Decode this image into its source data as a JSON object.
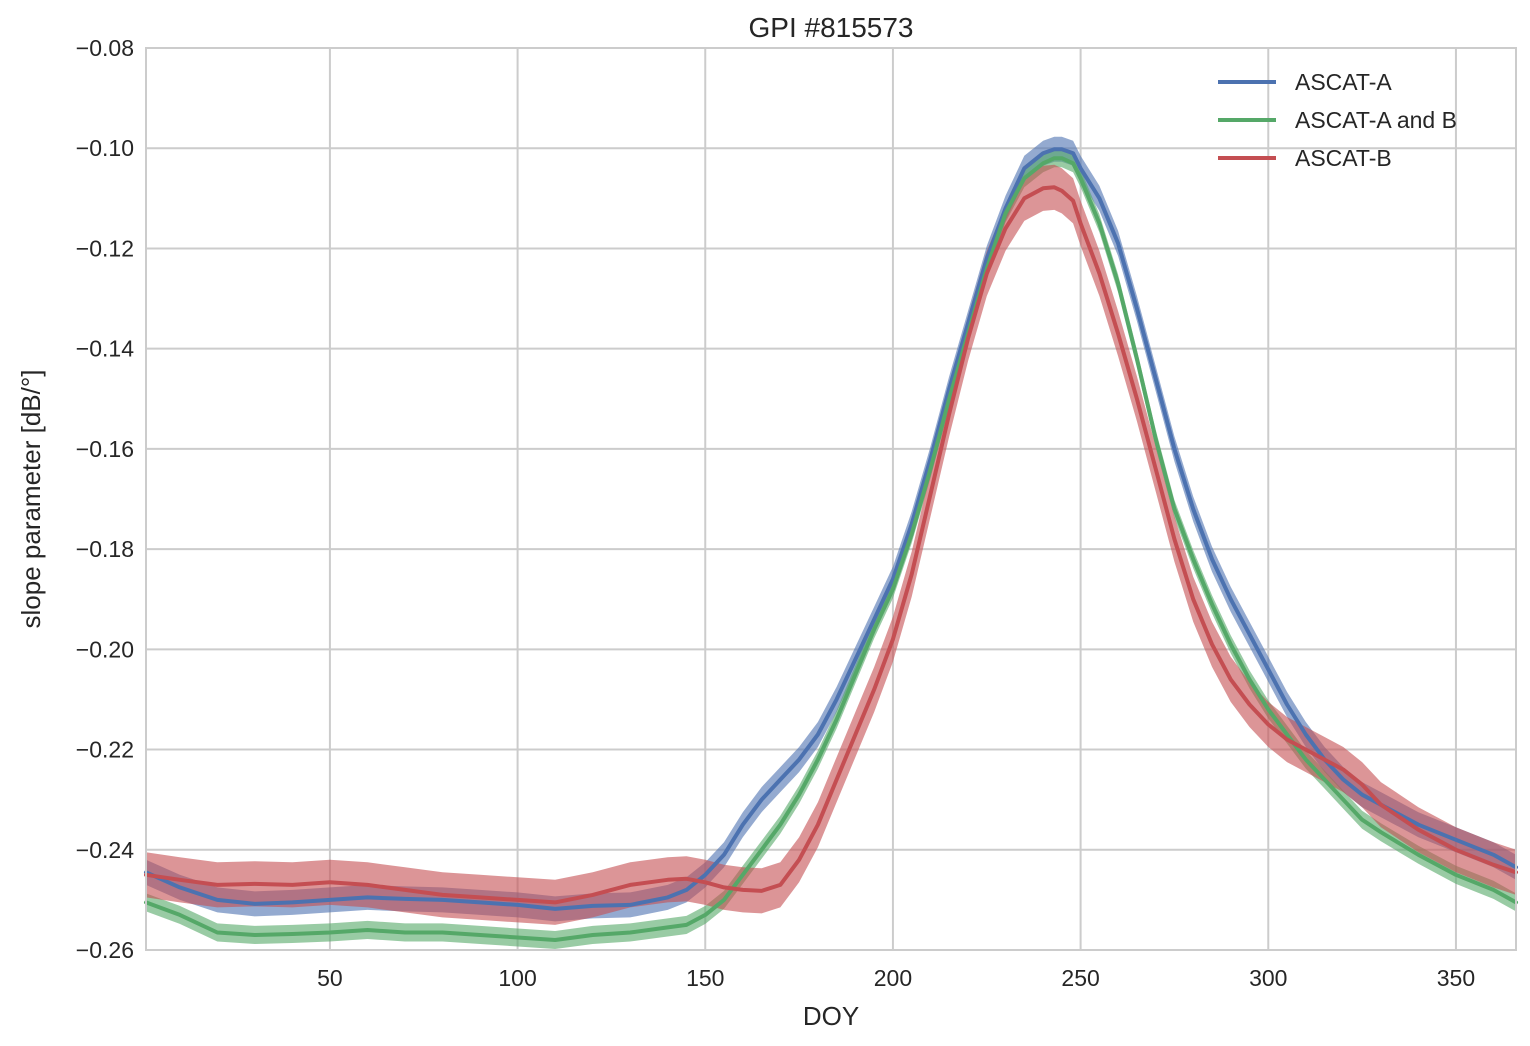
{
  "chart_data": {
    "type": "line",
    "title": "GPI #815573",
    "xlabel": "DOY",
    "ylabel": "slope parameter [dB/°]",
    "xlim": [
      1,
      366
    ],
    "ylim": [
      -0.26,
      -0.08
    ],
    "xticks": [
      50,
      100,
      150,
      200,
      250,
      300,
      350
    ],
    "yticks": [
      -0.26,
      -0.24,
      -0.22,
      -0.2,
      -0.18,
      -0.16,
      -0.14,
      -0.12,
      -0.1,
      -0.08
    ],
    "xtick_labels": [
      "50",
      "100",
      "150",
      "200",
      "250",
      "300",
      "350"
    ],
    "ytick_labels": [
      "−0.26",
      "−0.24",
      "−0.22",
      "−0.20",
      "−0.18",
      "−0.16",
      "−0.14",
      "−0.12",
      "−0.10",
      "−0.08"
    ],
    "grid": true,
    "legend_position": "top-right",
    "x": [
      1,
      10,
      20,
      30,
      40,
      50,
      60,
      70,
      80,
      90,
      100,
      110,
      120,
      130,
      140,
      145,
      150,
      155,
      160,
      165,
      170,
      175,
      180,
      185,
      190,
      195,
      200,
      205,
      210,
      215,
      220,
      225,
      230,
      235,
      240,
      243,
      245,
      248,
      250,
      255,
      260,
      265,
      270,
      275,
      280,
      285,
      290,
      295,
      300,
      305,
      310,
      315,
      320,
      325,
      330,
      340,
      350,
      360,
      366
    ],
    "series": [
      {
        "name": "ASCAT-A",
        "color": "#4c72b0",
        "band": 0.0025,
        "values": [
          -0.2445,
          -0.2475,
          -0.25,
          -0.2508,
          -0.2505,
          -0.25,
          -0.2495,
          -0.2498,
          -0.25,
          -0.2505,
          -0.251,
          -0.2518,
          -0.2512,
          -0.251,
          -0.2495,
          -0.248,
          -0.245,
          -0.241,
          -0.235,
          -0.23,
          -0.226,
          -0.222,
          -0.217,
          -0.21,
          -0.202,
          -0.194,
          -0.186,
          -0.175,
          -0.162,
          -0.148,
          -0.135,
          -0.122,
          -0.112,
          -0.104,
          -0.101,
          -0.1002,
          -0.1002,
          -0.101,
          -0.104,
          -0.11,
          -0.119,
          -0.132,
          -0.146,
          -0.16,
          -0.172,
          -0.182,
          -0.19,
          -0.197,
          -0.204,
          -0.211,
          -0.217,
          -0.222,
          -0.226,
          -0.229,
          -0.231,
          -0.235,
          -0.238,
          -0.241,
          -0.2435
        ]
      },
      {
        "name": "ASCAT-A and B",
        "color": "#55a868",
        "band": 0.0018,
        "values": [
          -0.2505,
          -0.253,
          -0.2565,
          -0.257,
          -0.2568,
          -0.2565,
          -0.256,
          -0.2565,
          -0.2565,
          -0.257,
          -0.2575,
          -0.258,
          -0.257,
          -0.2565,
          -0.2555,
          -0.255,
          -0.253,
          -0.25,
          -0.245,
          -0.24,
          -0.235,
          -0.229,
          -0.222,
          -0.214,
          -0.205,
          -0.196,
          -0.188,
          -0.177,
          -0.164,
          -0.15,
          -0.137,
          -0.124,
          -0.113,
          -0.106,
          -0.103,
          -0.102,
          -0.102,
          -0.103,
          -0.106,
          -0.115,
          -0.127,
          -0.142,
          -0.158,
          -0.172,
          -0.182,
          -0.191,
          -0.199,
          -0.206,
          -0.212,
          -0.217,
          -0.222,
          -0.226,
          -0.23,
          -0.234,
          -0.2365,
          -0.241,
          -0.245,
          -0.248,
          -0.2505
        ]
      },
      {
        "name": "ASCAT-B",
        "color": "#c44e52",
        "band": 0.0045,
        "values": [
          -0.245,
          -0.246,
          -0.247,
          -0.2468,
          -0.247,
          -0.2465,
          -0.247,
          -0.248,
          -0.249,
          -0.2495,
          -0.25,
          -0.2505,
          -0.249,
          -0.247,
          -0.246,
          -0.2458,
          -0.2465,
          -0.2475,
          -0.248,
          -0.2482,
          -0.247,
          -0.242,
          -0.235,
          -0.226,
          -0.217,
          -0.208,
          -0.198,
          -0.185,
          -0.169,
          -0.153,
          -0.138,
          -0.125,
          -0.116,
          -0.11,
          -0.108,
          -0.1078,
          -0.1085,
          -0.1105,
          -0.115,
          -0.125,
          -0.137,
          -0.15,
          -0.164,
          -0.178,
          -0.19,
          -0.199,
          -0.206,
          -0.211,
          -0.215,
          -0.218,
          -0.22,
          -0.222,
          -0.224,
          -0.227,
          -0.231,
          -0.236,
          -0.24,
          -0.243,
          -0.2445
        ]
      }
    ]
  }
}
